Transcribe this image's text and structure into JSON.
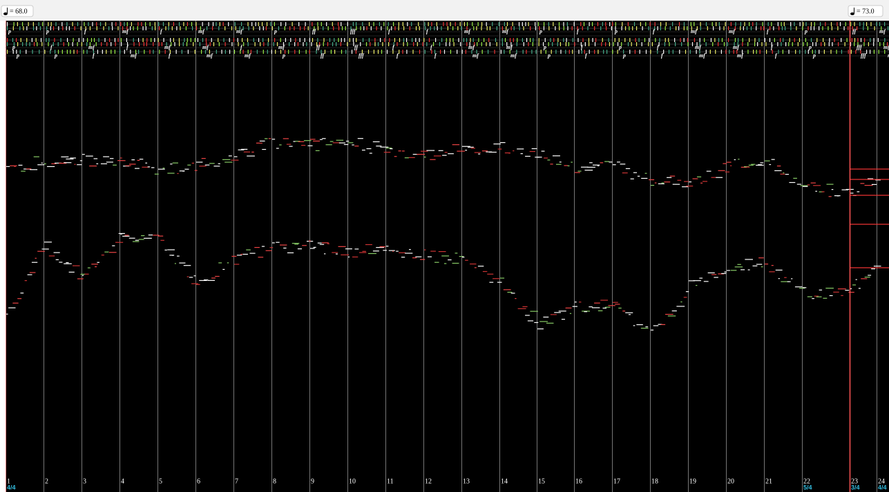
{
  "tempo_markings": [
    "= 68.0",
    "= 73.0"
  ],
  "dynamics_lanes": [
    [
      "p",
      "p",
      "f",
      "mf",
      "f",
      "mf",
      "mf",
      "p",
      "ff",
      "fff",
      "f",
      "f",
      "mf",
      "mf",
      "p",
      "f",
      "p",
      "f",
      "mf",
      "mf",
      "f",
      "p",
      "ff",
      "mf"
    ],
    [
      "p",
      "f",
      "mf",
      "f",
      "mf",
      "mf",
      "f",
      "mf",
      "ff",
      "ff",
      "f",
      "f",
      "mf",
      "mf",
      "p",
      "f",
      "p",
      "f",
      "mf",
      "mf",
      "f",
      "p",
      "fff",
      "mf"
    ],
    [
      "p",
      "p",
      "f",
      "mf",
      "f",
      "mf",
      "mf",
      "p",
      "ff",
      "fff",
      "f",
      "f",
      "mf",
      "mf",
      "p",
      "f",
      "p",
      "f",
      "mf",
      "mf",
      "f",
      "p",
      "fff",
      "mf"
    ]
  ],
  "measures": [
    {
      "number": 1,
      "time_signature": "4/4"
    },
    {
      "number": 2
    },
    {
      "number": 3
    },
    {
      "number": 4
    },
    {
      "number": 5
    },
    {
      "number": 6
    },
    {
      "number": 7
    },
    {
      "number": 8
    },
    {
      "number": 9
    },
    {
      "number": 10
    },
    {
      "number": 11
    },
    {
      "number": 12
    },
    {
      "number": 13
    },
    {
      "number": 14
    },
    {
      "number": 15
    },
    {
      "number": 16
    },
    {
      "number": 17
    },
    {
      "number": 18
    },
    {
      "number": 19
    },
    {
      "number": 20
    },
    {
      "number": 21
    },
    {
      "number": 22,
      "time_signature": "5/4"
    },
    {
      "number": 23,
      "time_signature": "3/4"
    },
    {
      "number": 24,
      "time_signature": "4/4"
    }
  ]
}
